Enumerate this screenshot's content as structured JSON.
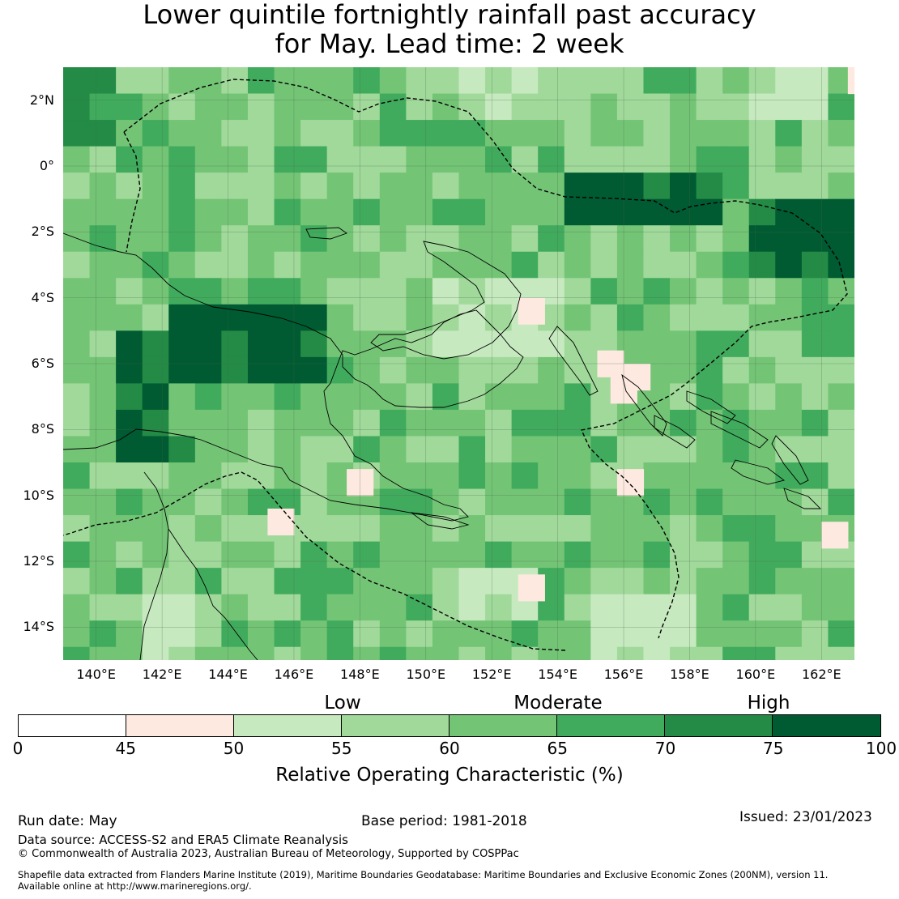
{
  "title": {
    "line1": "Lower quintile fortnightly rainfall past accuracy",
    "line2": "for May. Lead time: 2 week"
  },
  "map": {
    "lat_labels": [
      "2°N",
      "0°",
      "2°S",
      "4°S",
      "6°S",
      "8°S",
      "10°S",
      "12°S",
      "14°S"
    ],
    "lon_labels": [
      "140°E",
      "142°E",
      "144°E",
      "146°E",
      "148°E",
      "150°E",
      "152°E",
      "154°E",
      "156°E",
      "158°E",
      "160°E",
      "162°E"
    ],
    "lat_values": [
      2,
      0,
      -2,
      -4,
      -6,
      -8,
      -10,
      -12,
      -14
    ],
    "lon_values": [
      140,
      142,
      144,
      146,
      148,
      150,
      152,
      154,
      156,
      158,
      160,
      162
    ],
    "extent": {
      "lon_min": 139,
      "lon_max": 163,
      "lat_min": -15,
      "lat_max": 3
    },
    "cell_size_deg": 0.8,
    "boundary_style": "dashed",
    "land_outline_color": "#000000"
  },
  "colorbar": {
    "bounds": [
      0,
      45,
      50,
      55,
      60,
      65,
      70,
      75,
      100
    ],
    "tick_labels": [
      "0",
      "45",
      "50",
      "55",
      "60",
      "65",
      "70",
      "75",
      "100"
    ],
    "colors": [
      "#ffffff",
      "#fde9e0",
      "#c7e9c0",
      "#a1d99b",
      "#74c476",
      "#41ab5d",
      "#238b45",
      "#005a32"
    ],
    "categories": [
      "Low",
      "Moderate",
      "High"
    ],
    "label": "Relative Operating Characteristic (%)"
  },
  "footer": {
    "run_date": "Run date: May",
    "base_period": "Base period: 1981-2018",
    "issued": "Issued: 23/01/2023",
    "data_source": "Data source: ACCESS-S2 and ERA5 Climate Reanalysis",
    "copyright": "© Commonwealth of Australia 2023, Australian Bureau of Meteorology, Supported by COSPPac",
    "shapefile1": "Shapefile data extracted from Flanders Marine Institute (2019), Maritime Boundaries Geodatabase: Maritime Boundaries and Exclusive Economic Zones (200NM), version 11.",
    "shapefile2": "Available online at http://www.marineregions.org/."
  }
}
